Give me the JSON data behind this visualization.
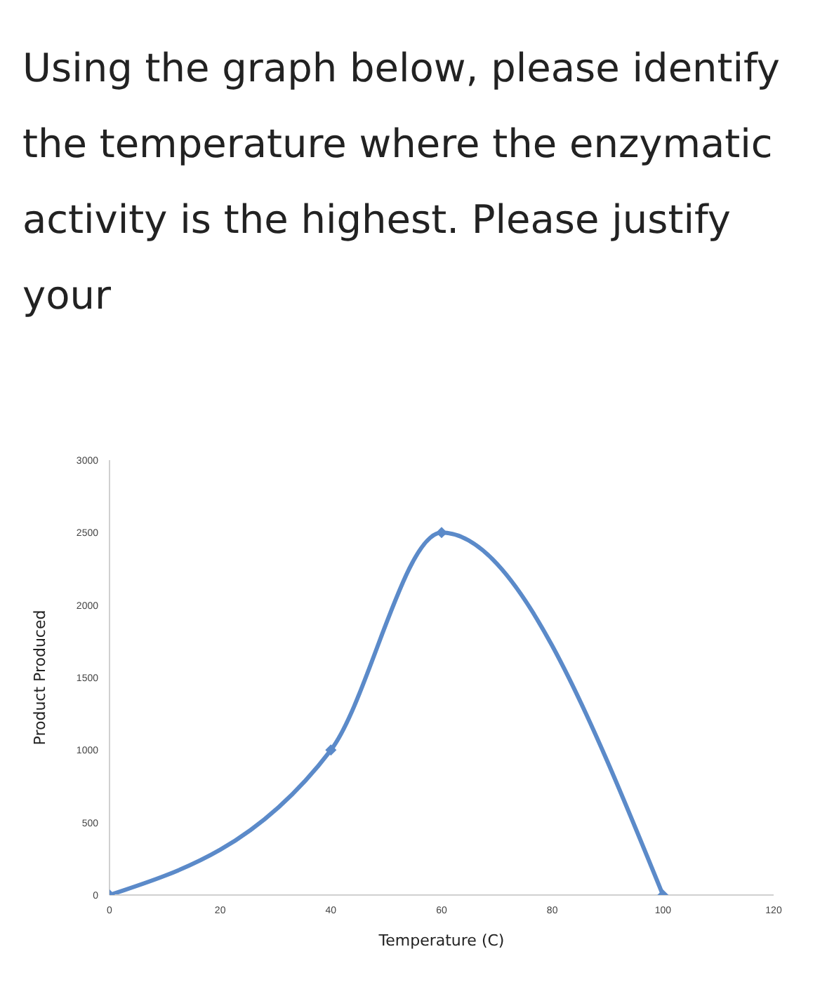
{
  "chart_data": {
    "type": "line",
    "title": "Using the graph below, please identify the temperature where the enzymatic activity is the highest. Please justify your",
    "xlabel": "Temperature (C)",
    "ylabel": "Product Produced",
    "x": [
      0,
      40,
      60,
      100
    ],
    "series": [
      {
        "color": "#5b8ac9",
        "values": [
          0,
          1000,
          2500,
          0
        ]
      }
    ],
    "xlim": [
      0,
      120
    ],
    "xticks": [
      0,
      20,
      40,
      60,
      80,
      100,
      120
    ],
    "ylim": [
      0,
      3000
    ],
    "yticks": [
      0,
      500,
      1000,
      1500,
      2000,
      2500,
      3000
    ],
    "grid": false,
    "legend": false,
    "marker": "diamond",
    "line_style": "solid"
  }
}
